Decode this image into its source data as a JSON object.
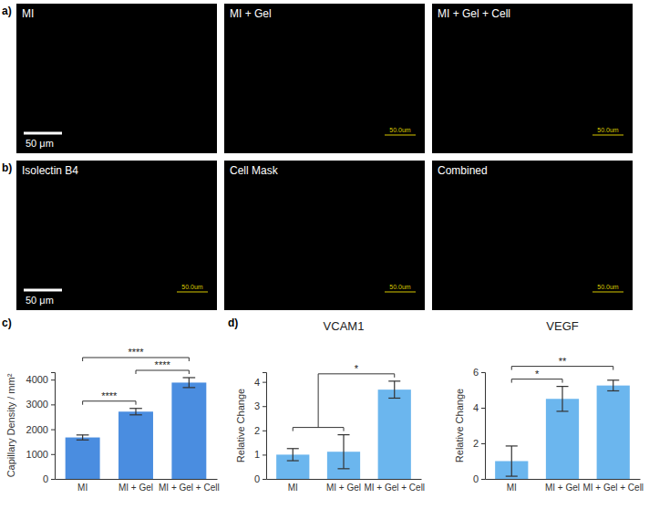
{
  "figure": {
    "image_rows": [
      {
        "label": "a)",
        "images": [
          {
            "title": "MI",
            "scale_bar": "50 μm"
          },
          {
            "title": "MI + Gel",
            "scale_label": "50.0um"
          },
          {
            "title": "MI + Gel + Cell",
            "scale_label": "50.0um"
          }
        ]
      },
      {
        "label": "b)",
        "images": [
          {
            "title": "Isolectin B4",
            "scale_bar": "50 μm",
            "scale_label": "50.0um"
          },
          {
            "title": "Cell Mask",
            "scale_label": "50.0um"
          },
          {
            "title": "Combined",
            "scale_label": "50.0um"
          }
        ]
      }
    ]
  },
  "chart_data": [
    {
      "type": "bar",
      "panel": "c)",
      "ylabel": "Capillary Density / mm²",
      "categories": [
        "MI",
        "MI + Gel",
        "MI + Gel + Cell"
      ],
      "values": [
        1670,
        2710,
        3880
      ],
      "errors": [
        100,
        130,
        200
      ],
      "color": "#4a8de0",
      "ylim": [
        0,
        4300
      ],
      "yticks": [
        0,
        1000,
        2000,
        3000,
        4000
      ],
      "significance": [
        {
          "from": [
            0
          ],
          "to": [
            1
          ],
          "label": "****"
        },
        {
          "from": [
            1
          ],
          "to": [
            2
          ],
          "label": "****"
        },
        {
          "from": [
            0
          ],
          "to": [
            2
          ],
          "label": "****"
        }
      ]
    },
    {
      "type": "bar",
      "panel": "d)",
      "title": "VCAM1",
      "ylabel": "Relative Change",
      "categories": [
        "MI",
        "MI + Gel",
        "MI + Gel + Cell"
      ],
      "values": [
        1.0,
        1.12,
        3.68
      ],
      "errors": [
        0.25,
        0.7,
        0.35
      ],
      "color": "#6bb6ee",
      "ylim": [
        0,
        4.4
      ],
      "yticks": [
        0,
        1,
        2,
        3,
        4
      ],
      "significance": [
        {
          "from": [
            0,
            1
          ],
          "to": [
            2
          ],
          "label": "*"
        }
      ]
    },
    {
      "type": "bar",
      "title": "VEGF",
      "ylabel": "Relative Change",
      "categories": [
        "MI",
        "MI + Gel",
        "MI + Gel + Cell"
      ],
      "values": [
        1.0,
        4.5,
        5.25
      ],
      "errors": [
        0.85,
        0.7,
        0.3
      ],
      "color": "#6bb6ee",
      "ylim": [
        0,
        6
      ],
      "yticks": [
        0,
        2,
        4,
        6
      ],
      "significance": [
        {
          "from": [
            0
          ],
          "to": [
            1
          ],
          "label": "*"
        },
        {
          "from": [
            0
          ],
          "to": [
            2
          ],
          "label": "**"
        }
      ]
    }
  ]
}
